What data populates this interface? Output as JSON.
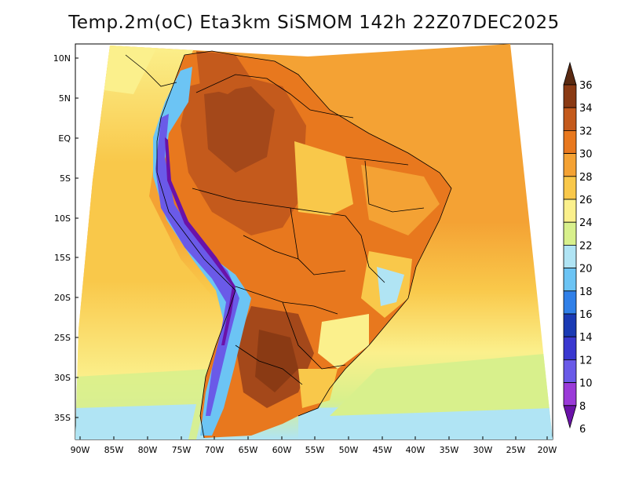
{
  "title": "Temp.2m(oC) Eta3km SiSMOM 142h 22Z07DEC2025",
  "lat_labels": [
    "10N",
    "5N",
    "EQ",
    "5S",
    "10S",
    "15S",
    "20S",
    "25S",
    "30S",
    "35S"
  ],
  "lon_labels": [
    "90W",
    "85W",
    "80W",
    "75W",
    "70W",
    "65W",
    "60W",
    "55W",
    "50W",
    "45W",
    "40W",
    "35W",
    "30W",
    "25W",
    "20W"
  ],
  "colorbar": {
    "labels": [
      "36",
      "34",
      "32",
      "30",
      "28",
      "26",
      "24",
      "22",
      "20",
      "18",
      "16",
      "14",
      "12",
      "10",
      "8",
      "6"
    ],
    "colors": [
      "#5a2a12",
      "#8a3a14",
      "#c45a1c",
      "#e8781e",
      "#f4a234",
      "#f9c84a",
      "#fbf08c",
      "#d8f08c",
      "#b0e4f4",
      "#6cc4f4",
      "#3080e8",
      "#1a3ab4",
      "#3a38d0",
      "#6a5ae8",
      "#9a3ad8",
      "#6a12a8"
    ]
  },
  "colors": {
    "ocean_warm": "#f4a234",
    "ocean_mid": "#fbf08c",
    "ocean_cool": "#d8f08c",
    "ocean_cold": "#b0e4f4",
    "land_hot": "#c45a1c",
    "land_warm": "#e8781e",
    "andes_cold": "#6a5ae8"
  }
}
